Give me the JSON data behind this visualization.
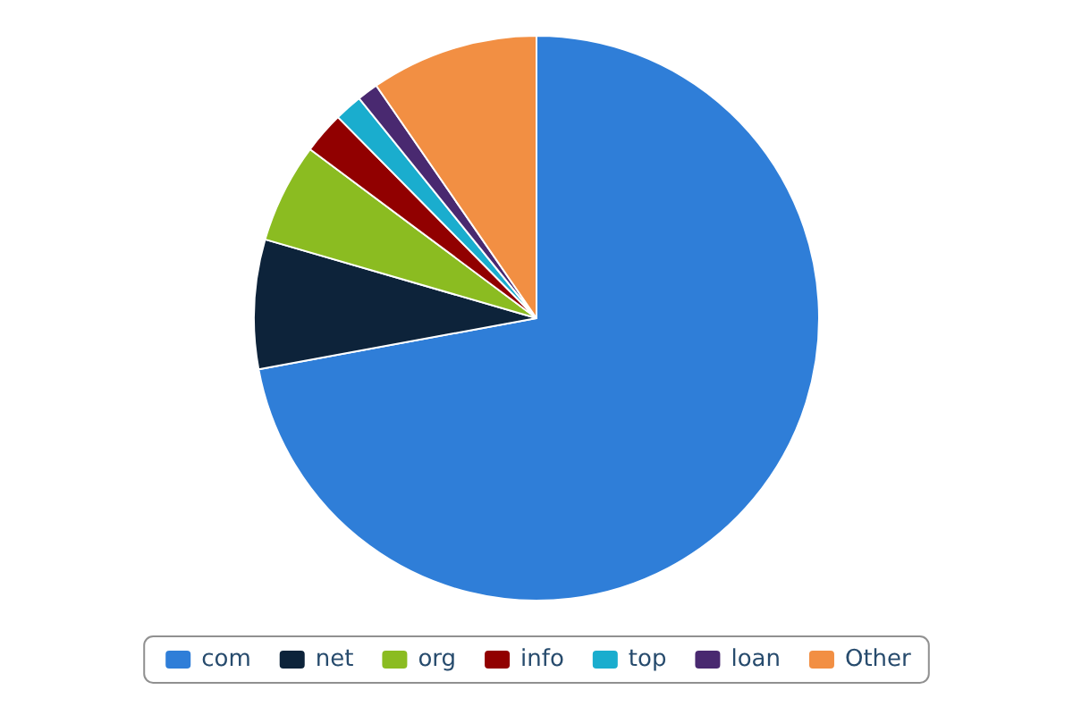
{
  "chart_data": {
    "type": "pie",
    "categories": [
      "com",
      "net",
      "org",
      "info",
      "top",
      "loan",
      "Other"
    ],
    "values": [
      72.1,
      7.4,
      5.7,
      2.4,
      1.6,
      1.2,
      9.6
    ],
    "colors": [
      "#2f7ed8",
      "#0d233a",
      "#8bbc21",
      "#910000",
      "#1aadce",
      "#492970",
      "#f28f43"
    ],
    "legend": "bottom"
  }
}
